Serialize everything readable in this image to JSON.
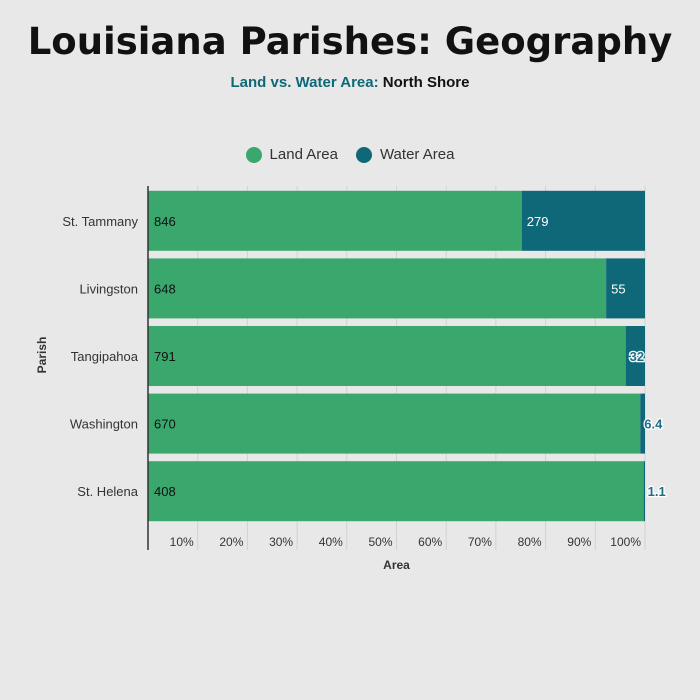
{
  "title": "Louisiana Parishes: Geography",
  "subtitle": {
    "accent": "Land vs. Water Area:",
    "rest": " North Shore"
  },
  "colors": {
    "land": "#3aa76d",
    "water": "#0f6878",
    "background": "#e8e8e8"
  },
  "chart_data": {
    "type": "bar",
    "orientation": "horizontal",
    "stacked": "percent",
    "xlabel": "Area",
    "ylabel": "Parish",
    "categories": [
      "St. Tammany",
      "Livingston",
      "Tangipahoa",
      "Washington",
      "St. Helena"
    ],
    "series": [
      {
        "name": "Land Area",
        "values": [
          846,
          648,
          791,
          670,
          408
        ],
        "labels": [
          "846",
          "648",
          "791",
          "670",
          "408"
        ]
      },
      {
        "name": "Water Area",
        "values": [
          279,
          55,
          32,
          6.4,
          1.1
        ],
        "labels": [
          "279",
          "55",
          "32",
          "6.4",
          "1.1"
        ]
      }
    ],
    "x_ticks": [
      "10%",
      "20%",
      "30%",
      "40%",
      "50%",
      "60%",
      "70%",
      "80%",
      "90%",
      "100%"
    ],
    "xlim": [
      0,
      100
    ],
    "grid": true,
    "legend_position": "top"
  }
}
